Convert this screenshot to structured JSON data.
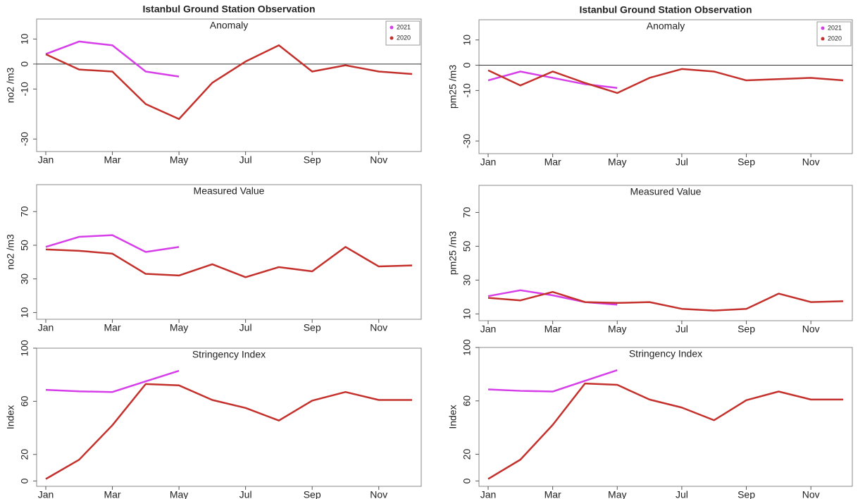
{
  "chart_data": [
    {
      "type": "line",
      "title": "Istanbul Ground Station Observation",
      "subtitle": "Anomaly",
      "y_label": "no2 /m3",
      "categories": [
        "Jan",
        null,
        "Mar",
        null,
        "May",
        null,
        "Jul",
        null,
        "Sep",
        null,
        "Nov",
        null
      ],
      "series": [
        {
          "name": "2021",
          "color": "#d53ee8",
          "values": [
            4,
            9,
            7.5,
            -3,
            -5,
            null,
            null,
            null,
            null,
            null,
            null,
            null
          ]
        },
        {
          "name": "2020",
          "color": "#c4302b",
          "values": [
            3.9,
            -2.2,
            -3,
            -16,
            -22,
            -7.5,
            1,
            7.5,
            -3,
            -0.5,
            -3,
            -4
          ]
        }
      ],
      "ylim": [
        -35,
        18
      ],
      "yticks": [
        10,
        0,
        -10,
        -30
      ],
      "hline": 0,
      "legend": "top-right"
    },
    {
      "type": "line",
      "title": "Istanbul Ground Station Observation",
      "subtitle": "Anomaly",
      "y_label": "pm25 /m3",
      "categories": [
        "Jan",
        null,
        "Mar",
        null,
        "May",
        null,
        "Jul",
        null,
        "Sep",
        null,
        "Nov",
        null
      ],
      "series": [
        {
          "name": "2021",
          "color": "#d53ee8",
          "values": [
            -6,
            -2.5,
            -5,
            -7.5,
            -9,
            null,
            null,
            null,
            null,
            null,
            null,
            null
          ]
        },
        {
          "name": "2020",
          "color": "#c4302b",
          "values": [
            -2,
            -8,
            -2.5,
            -7,
            -11,
            -5,
            -1.5,
            -2.5,
            -6,
            -5.5,
            -5,
            -6
          ]
        }
      ],
      "ylim": [
        -35,
        18
      ],
      "yticks": [
        10,
        0,
        -10,
        -30
      ],
      "hline": 0,
      "legend": "top-right"
    },
    {
      "type": "line",
      "subtitle": "Measured Value",
      "y_label": "no2 /m3",
      "categories": [
        "Jan",
        null,
        "Mar",
        null,
        "May",
        null,
        "Jul",
        null,
        "Sep",
        null,
        "Nov",
        null
      ],
      "series": [
        {
          "name": "2021",
          "color": "#d53ee8",
          "values": [
            49,
            55,
            56,
            46,
            49,
            null,
            null,
            null,
            null,
            null,
            null,
            null
          ]
        },
        {
          "name": "2020",
          "color": "#c4302b",
          "values": [
            47.5,
            46.7,
            45,
            33,
            32,
            38.7,
            31,
            37,
            34.5,
            49,
            37.4,
            38
          ]
        }
      ],
      "ylim": [
        6,
        86
      ],
      "yticks": [
        10,
        30,
        50,
        70
      ]
    },
    {
      "type": "line",
      "subtitle": "Measured Value",
      "y_label": "pm25 /m3",
      "categories": [
        "Jan",
        null,
        "Mar",
        null,
        "May",
        null,
        "Jul",
        null,
        "Sep",
        null,
        "Nov",
        null
      ],
      "series": [
        {
          "name": "2021",
          "color": "#d53ee8",
          "values": [
            20.5,
            24,
            21,
            17,
            15.5,
            null,
            null,
            null,
            null,
            null,
            null,
            null
          ]
        },
        {
          "name": "2020",
          "color": "#c4302b",
          "values": [
            19.5,
            18,
            23,
            17,
            16.5,
            17,
            13,
            12,
            13,
            22,
            17,
            17.5
          ]
        }
      ],
      "ylim": [
        6,
        86
      ],
      "yticks": [
        10,
        30,
        50,
        70
      ]
    },
    {
      "type": "line",
      "subtitle": "Stringency Index",
      "y_label": "Index",
      "categories": [
        "Jan",
        null,
        "Mar",
        null,
        "May",
        null,
        "Jul",
        null,
        "Sep",
        null,
        "Nov",
        null
      ],
      "series": [
        {
          "name": "2021",
          "color": "#d53ee8",
          "values": [
            68.6,
            67.5,
            67,
            75,
            83,
            null,
            null,
            null,
            null,
            null,
            null,
            null
          ]
        },
        {
          "name": "2020",
          "color": "#c4302b",
          "values": [
            1.5,
            16,
            42,
            73,
            72,
            61,
            55,
            45.5,
            60.5,
            67,
            61,
            61
          ]
        }
      ],
      "ylim": [
        -4,
        100
      ],
      "yticks": [
        0,
        20,
        60,
        100
      ]
    },
    {
      "type": "line",
      "subtitle": "Stringency Index",
      "y_label": "Index",
      "categories": [
        "Jan",
        null,
        "Mar",
        null,
        "May",
        null,
        "Jul",
        null,
        "Sep",
        null,
        "Nov",
        null
      ],
      "series": [
        {
          "name": "2021",
          "color": "#d53ee8",
          "values": [
            68.6,
            67.5,
            67,
            75,
            83,
            null,
            null,
            null,
            null,
            null,
            null,
            null
          ]
        },
        {
          "name": "2020",
          "color": "#c4302b",
          "values": [
            1.5,
            16,
            42,
            73,
            72,
            61,
            55,
            45.5,
            60.5,
            67,
            61,
            61
          ]
        }
      ],
      "ylim": [
        -4,
        100
      ],
      "yticks": [
        0,
        20,
        60,
        100
      ]
    }
  ]
}
